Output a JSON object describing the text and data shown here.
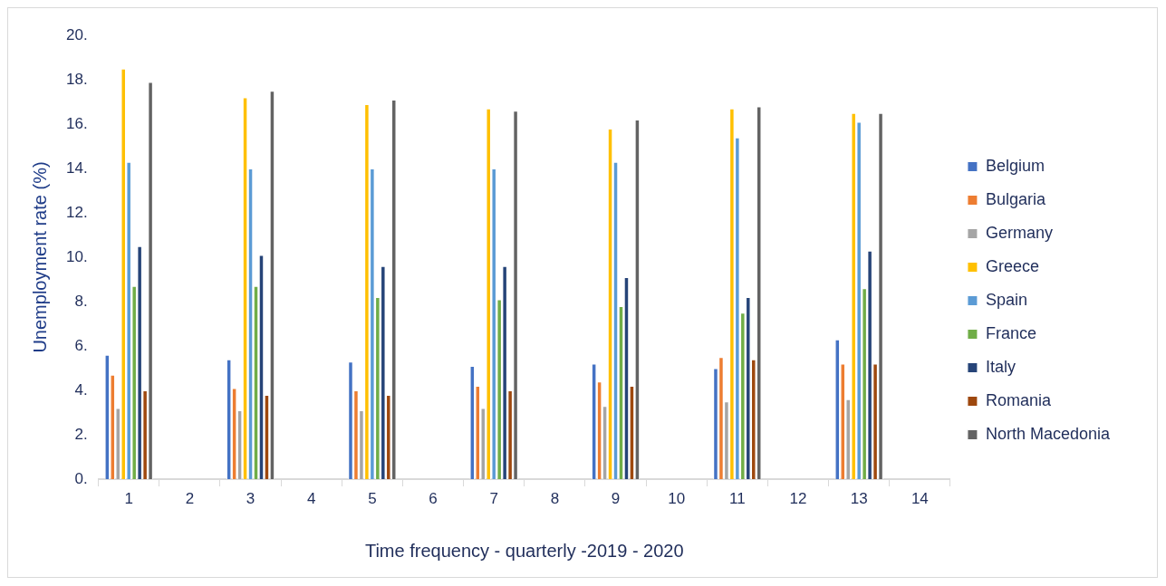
{
  "chart_data": {
    "type": "bar",
    "xlabel": "Time frequency - quarterly -2019 - 2020",
    "ylabel": "Unemployment rate (%)",
    "categories": [
      "1",
      "2",
      "3",
      "4",
      "5",
      "6",
      "7",
      "8",
      "9",
      "10",
      "11",
      "12",
      "13",
      "14"
    ],
    "ylim": [
      0,
      20
    ],
    "yticks": [
      {
        "value": 0,
        "label": "0."
      },
      {
        "value": 2,
        "label": "2."
      },
      {
        "value": 4,
        "label": "4."
      },
      {
        "value": 6,
        "label": "6."
      },
      {
        "value": 8,
        "label": "8."
      },
      {
        "value": 10,
        "label": "10."
      },
      {
        "value": 12,
        "label": "12."
      },
      {
        "value": 14,
        "label": "14."
      },
      {
        "value": 16,
        "label": "16."
      },
      {
        "value": 18,
        "label": "18."
      },
      {
        "value": 20,
        "label": "20."
      }
    ],
    "grid": false,
    "legend": "right",
    "series": [
      {
        "name": "Belgium",
        "color": "#4472c4",
        "values": [
          5.6,
          null,
          5.4,
          null,
          5.3,
          null,
          5.1,
          null,
          5.2,
          null,
          5.0,
          null,
          6.3,
          null
        ]
      },
      {
        "name": "Bulgaria",
        "color": "#ed7d31",
        "values": [
          4.7,
          null,
          4.1,
          null,
          4.0,
          null,
          4.2,
          null,
          4.4,
          null,
          5.5,
          null,
          5.2,
          null
        ]
      },
      {
        "name": "Germany",
        "color": "#a5a5a5",
        "values": [
          3.2,
          null,
          3.1,
          null,
          3.1,
          null,
          3.2,
          null,
          3.3,
          null,
          3.5,
          null,
          3.6,
          null
        ]
      },
      {
        "name": "Greece",
        "color": "#ffc000",
        "values": [
          18.5,
          null,
          17.2,
          null,
          16.9,
          null,
          16.7,
          null,
          15.8,
          null,
          16.7,
          null,
          16.5,
          null
        ]
      },
      {
        "name": "Spain",
        "color": "#5b9bd5",
        "values": [
          14.3,
          null,
          14.0,
          null,
          14.0,
          null,
          14.0,
          null,
          14.3,
          null,
          15.4,
          null,
          16.1,
          null
        ]
      },
      {
        "name": "France",
        "color": "#70ad47",
        "values": [
          8.7,
          null,
          8.7,
          null,
          8.2,
          null,
          8.1,
          null,
          7.8,
          null,
          7.5,
          null,
          8.6,
          null
        ]
      },
      {
        "name": "Italy",
        "color": "#264478",
        "values": [
          10.5,
          null,
          10.1,
          null,
          9.6,
          null,
          9.6,
          null,
          9.1,
          null,
          8.2,
          null,
          10.3,
          null
        ]
      },
      {
        "name": "Romania",
        "color": "#9e480e",
        "values": [
          4.0,
          null,
          3.8,
          null,
          3.8,
          null,
          4.0,
          null,
          4.2,
          null,
          5.4,
          null,
          5.2,
          null
        ]
      },
      {
        "name": "North Macedonia",
        "color": "#636363",
        "values": [
          17.9,
          null,
          17.5,
          null,
          17.1,
          null,
          16.6,
          null,
          16.2,
          null,
          16.8,
          null,
          16.5,
          null
        ]
      }
    ]
  }
}
